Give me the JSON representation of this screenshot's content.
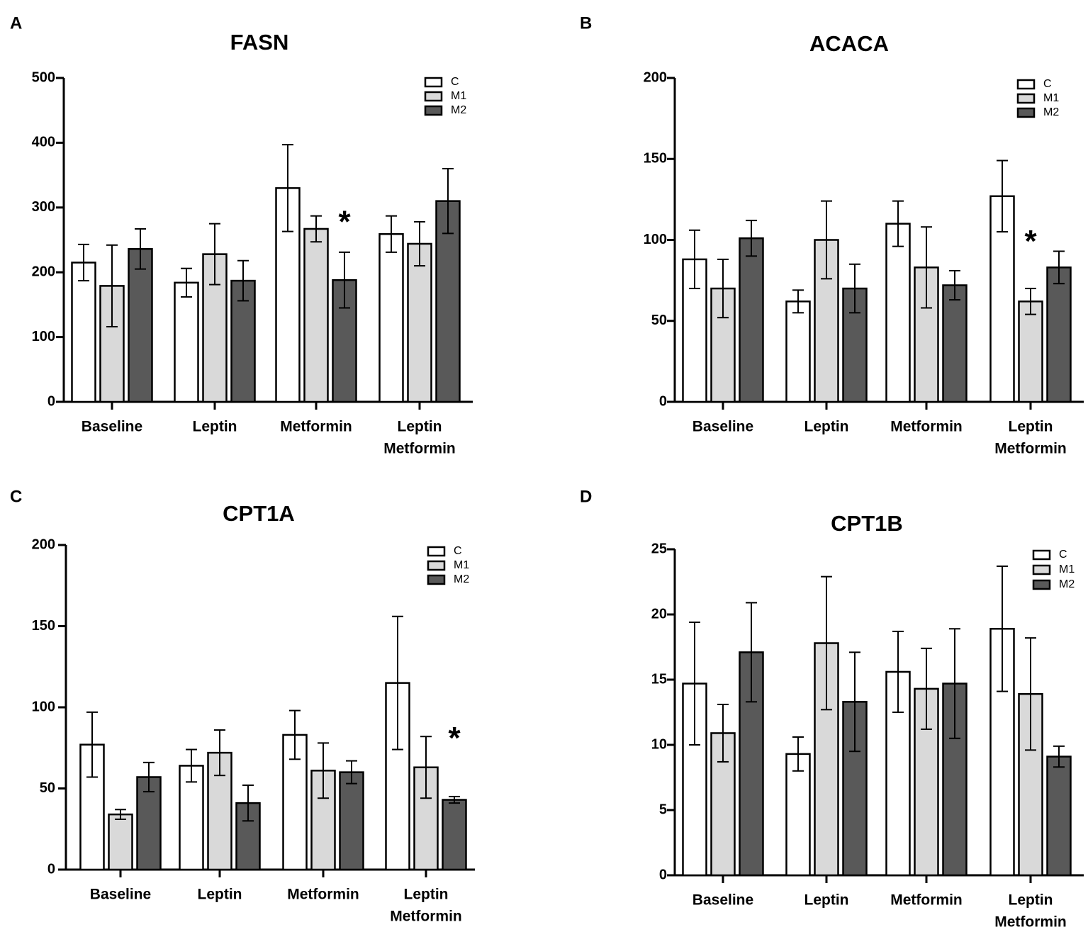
{
  "figure": {
    "legend_labels": [
      "C",
      "M1",
      "M2"
    ],
    "colors": {
      "C": "#ffffff",
      "M1": "#d9d9d9",
      "M2": "#595959",
      "stroke": "#000000"
    }
  },
  "chart_data": [
    {
      "panel": "A",
      "type": "bar",
      "title": "FASN",
      "xlabel": "",
      "ylabel": "",
      "categories": [
        [
          "Baseline"
        ],
        [
          "Leptin"
        ],
        [
          "Metformin"
        ],
        [
          "Leptin",
          "Metformin"
        ]
      ],
      "ylim": [
        0,
        500
      ],
      "yticks": [
        0,
        100,
        200,
        300,
        400,
        500
      ],
      "grid": false,
      "legend_position": "top-right",
      "series": [
        {
          "name": "C",
          "values": [
            215,
            184,
            330,
            259
          ],
          "errors": [
            28,
            22,
            67,
            28
          ]
        },
        {
          "name": "M1",
          "values": [
            179,
            228,
            267,
            244
          ],
          "errors": [
            63,
            47,
            20,
            34
          ]
        },
        {
          "name": "M2",
          "values": [
            236,
            187,
            188,
            310
          ],
          "errors": [
            31,
            31,
            43,
            50
          ]
        }
      ],
      "annotations": [
        {
          "text": "*",
          "category_index": 2,
          "series": "M2",
          "y": 275
        }
      ]
    },
    {
      "panel": "B",
      "type": "bar",
      "title": "ACACA",
      "xlabel": "",
      "ylabel": "",
      "categories": [
        [
          "Baseline"
        ],
        [
          "Leptin"
        ],
        [
          "Metformin"
        ],
        [
          "Leptin",
          "Metformin"
        ]
      ],
      "ylim": [
        0,
        200
      ],
      "yticks": [
        0,
        50,
        100,
        150,
        200
      ],
      "grid": false,
      "legend_position": "top-right",
      "series": [
        {
          "name": "C",
          "values": [
            88,
            62,
            110,
            127
          ],
          "errors": [
            18,
            7,
            14,
            22
          ]
        },
        {
          "name": "M1",
          "values": [
            70,
            100,
            83,
            62
          ],
          "errors": [
            18,
            24,
            25,
            8
          ]
        },
        {
          "name": "M2",
          "values": [
            101,
            70,
            72,
            83
          ],
          "errors": [
            11,
            15,
            9,
            10
          ]
        }
      ],
      "annotations": [
        {
          "text": "*",
          "category_index": 3,
          "series": "M1",
          "y": 98
        }
      ]
    },
    {
      "panel": "C",
      "type": "bar",
      "title": "CPT1A",
      "xlabel": "",
      "ylabel": "",
      "categories": [
        [
          "Baseline"
        ],
        [
          "Leptin"
        ],
        [
          "Metformin"
        ],
        [
          "Leptin",
          "Metformin"
        ]
      ],
      "ylim": [
        0,
        200
      ],
      "yticks": [
        0,
        50,
        100,
        150,
        200
      ],
      "grid": false,
      "legend_position": "top-right",
      "series": [
        {
          "name": "C",
          "values": [
            77,
            64,
            83,
            115
          ],
          "errors": [
            20,
            10,
            15,
            41
          ]
        },
        {
          "name": "M1",
          "values": [
            34,
            72,
            61,
            63
          ],
          "errors": [
            3,
            14,
            17,
            19
          ]
        },
        {
          "name": "M2",
          "values": [
            57,
            41,
            60,
            43
          ],
          "errors": [
            9,
            11,
            7,
            2
          ]
        }
      ],
      "annotations": [
        {
          "text": "*",
          "category_index": 3,
          "series": "M2",
          "y": 80
        }
      ]
    },
    {
      "panel": "D",
      "type": "bar",
      "title": "CPT1B",
      "xlabel": "",
      "ylabel": "",
      "categories": [
        [
          "Baseline"
        ],
        [
          "Leptin"
        ],
        [
          "Metformin"
        ],
        [
          "Leptin",
          "Metformin"
        ]
      ],
      "ylim": [
        0,
        25
      ],
      "yticks": [
        0,
        5,
        10,
        15,
        20,
        25
      ],
      "grid": false,
      "legend_position": "top-right",
      "series": [
        {
          "name": "C",
          "values": [
            14.7,
            9.3,
            15.6,
            18.9
          ],
          "errors": [
            4.7,
            1.3,
            3.1,
            4.8
          ]
        },
        {
          "name": "M1",
          "values": [
            10.9,
            17.8,
            14.3,
            13.9
          ],
          "errors": [
            2.2,
            5.1,
            3.1,
            4.3
          ]
        },
        {
          "name": "M2",
          "values": [
            17.1,
            13.3,
            14.7,
            9.1
          ],
          "errors": [
            3.8,
            3.8,
            4.2,
            0.8
          ]
        }
      ],
      "annotations": []
    }
  ]
}
